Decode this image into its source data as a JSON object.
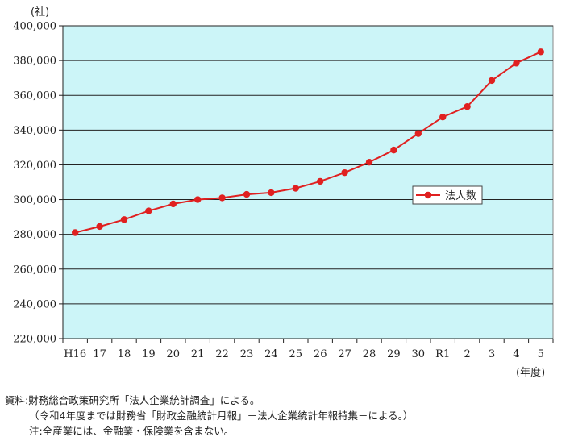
{
  "chart_data": {
    "type": "line",
    "y_unit": "(社)",
    "x_unit": "(年度)",
    "categories": [
      "H16",
      "17",
      "18",
      "19",
      "20",
      "21",
      "22",
      "23",
      "24",
      "25",
      "26",
      "27",
      "28",
      "29",
      "30",
      "R1",
      "2",
      "3",
      "4",
      "5"
    ],
    "series": [
      {
        "name": "法人数",
        "values": [
          281000,
          284500,
          288500,
          293500,
          297500,
          300000,
          301000,
          303000,
          304000,
          306500,
          310500,
          315500,
          321500,
          328500,
          338000,
          347500,
          353500,
          368500,
          378500,
          385000
        ]
      }
    ],
    "ylim": [
      220000,
      400000
    ],
    "yticks": [
      220000,
      240000,
      260000,
      280000,
      300000,
      320000,
      340000,
      360000,
      380000,
      400000
    ],
    "ytick_labels": [
      "220,000",
      "240,000",
      "260,000",
      "280,000",
      "300,000",
      "320,000",
      "340,000",
      "360,000",
      "380,000",
      "400,000"
    ],
    "grid": true,
    "legend_position": "center-right",
    "colors": {
      "plot_bg": "#ccf5f8",
      "line": "#e02020",
      "marker": "#e02020",
      "grid": "#222222"
    }
  },
  "notes": {
    "source": "資料:財務総合政策研究所「法人企業統計調査」による。",
    "paren": "（令和4年度までは財務省「財政金融統計月報」－法人企業統計年報特集－による。）",
    "note": "注:全産業には、金融業・保険業を含まない。"
  }
}
